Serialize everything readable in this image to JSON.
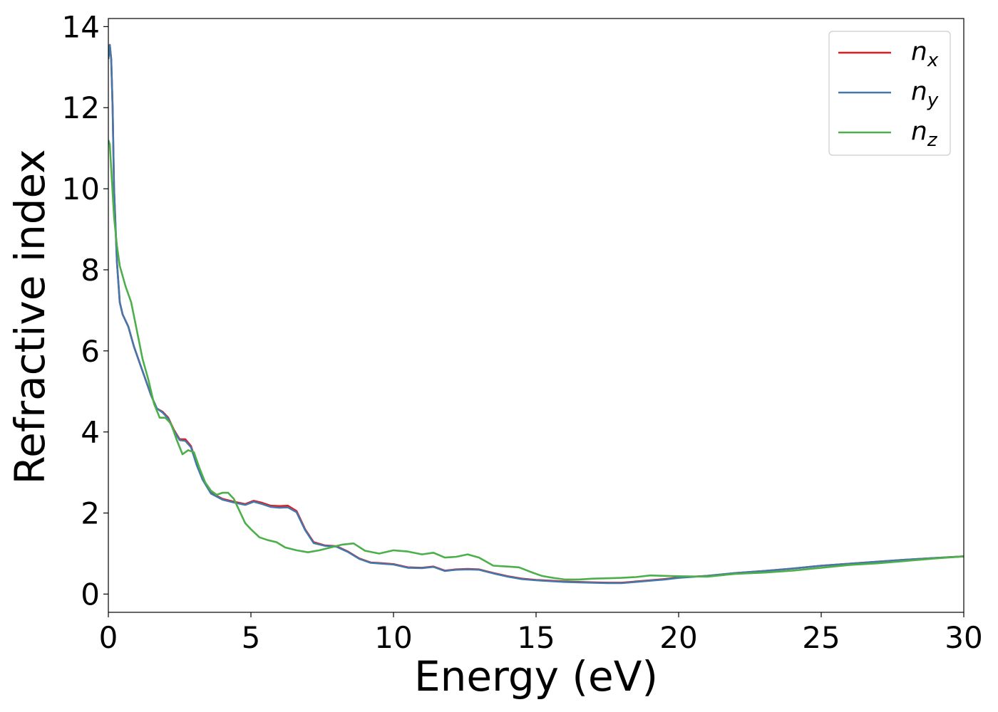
{
  "chart_data": {
    "type": "line",
    "title": "",
    "xlabel": "Energy (eV)",
    "ylabel": "Refractive index",
    "xlim": [
      0,
      30
    ],
    "ylim": [
      -0.45,
      14.2
    ],
    "xticks": [
      0,
      5,
      10,
      15,
      20,
      25,
      30
    ],
    "yticks": [
      0,
      2,
      4,
      6,
      8,
      10,
      12,
      14
    ],
    "grid": false,
    "legend_position": "top-right",
    "series": [
      {
        "name": "n",
        "subscript": "x",
        "color": "#e41a1c",
        "x": [
          0,
          0.05,
          0.1,
          0.15,
          0.2,
          0.3,
          0.4,
          0.5,
          0.7,
          0.9,
          1.1,
          1.3,
          1.5,
          1.7,
          1.9,
          2.1,
          2.3,
          2.5,
          2.7,
          2.9,
          3.1,
          3.3,
          3.6,
          4.0,
          4.4,
          4.8,
          5.1,
          5.4,
          5.7,
          6.0,
          6.3,
          6.6,
          6.9,
          7.2,
          7.6,
          8.0,
          8.4,
          8.8,
          9.2,
          9.6,
          10.0,
          10.5,
          11.0,
          11.4,
          11.8,
          12.2,
          12.6,
          13.0,
          13.5,
          14.0,
          14.5,
          15.0,
          15.5,
          16.0,
          16.5,
          17.0,
          17.5,
          18.0,
          18.5,
          19.0,
          19.5,
          20.0,
          21.0,
          22.0,
          23.0,
          24.0,
          25.0,
          26.0,
          27.0,
          28.0,
          29.0,
          30.0
        ],
        "y": [
          13.2,
          13.55,
          13.2,
          12.0,
          10.0,
          8.2,
          7.2,
          6.9,
          6.6,
          6.1,
          5.7,
          5.3,
          4.9,
          4.58,
          4.5,
          4.35,
          4.05,
          3.82,
          3.82,
          3.65,
          3.2,
          2.85,
          2.5,
          2.35,
          2.28,
          2.22,
          2.3,
          2.25,
          2.18,
          2.17,
          2.18,
          2.05,
          1.6,
          1.28,
          1.2,
          1.18,
          1.05,
          0.88,
          0.78,
          0.76,
          0.74,
          0.66,
          0.65,
          0.68,
          0.58,
          0.61,
          0.62,
          0.61,
          0.52,
          0.44,
          0.38,
          0.35,
          0.33,
          0.31,
          0.3,
          0.29,
          0.28,
          0.28,
          0.31,
          0.34,
          0.37,
          0.41,
          0.45,
          0.52,
          0.57,
          0.63,
          0.7,
          0.75,
          0.8,
          0.85,
          0.89,
          0.93
        ]
      },
      {
        "name": "n",
        "subscript": "y",
        "color": "#4477aa",
        "x": [
          0,
          0.05,
          0.1,
          0.15,
          0.2,
          0.3,
          0.4,
          0.5,
          0.7,
          0.9,
          1.1,
          1.3,
          1.5,
          1.7,
          1.9,
          2.1,
          2.3,
          2.5,
          2.7,
          2.9,
          3.1,
          3.3,
          3.6,
          4.0,
          4.4,
          4.8,
          5.1,
          5.4,
          5.7,
          6.0,
          6.3,
          6.6,
          6.9,
          7.2,
          7.6,
          8.0,
          8.4,
          8.8,
          9.2,
          9.6,
          10.0,
          10.5,
          11.0,
          11.4,
          11.8,
          12.2,
          12.6,
          13.0,
          13.5,
          14.0,
          14.5,
          15.0,
          15.5,
          16.0,
          16.5,
          17.0,
          17.5,
          18.0,
          18.5,
          19.0,
          19.5,
          20.0,
          21.0,
          22.0,
          23.0,
          24.0,
          25.0,
          26.0,
          27.0,
          28.0,
          29.0,
          30.0
        ],
        "y": [
          13.2,
          13.55,
          13.2,
          12.0,
          10.0,
          8.2,
          7.2,
          6.9,
          6.6,
          6.1,
          5.7,
          5.3,
          4.9,
          4.58,
          4.48,
          4.33,
          4.03,
          3.8,
          3.78,
          3.62,
          3.18,
          2.83,
          2.48,
          2.33,
          2.26,
          2.2,
          2.28,
          2.22,
          2.15,
          2.13,
          2.14,
          2.02,
          1.58,
          1.26,
          1.19,
          1.17,
          1.04,
          0.87,
          0.77,
          0.75,
          0.73,
          0.65,
          0.64,
          0.67,
          0.57,
          0.6,
          0.61,
          0.6,
          0.51,
          0.43,
          0.37,
          0.34,
          0.32,
          0.3,
          0.29,
          0.28,
          0.27,
          0.27,
          0.3,
          0.33,
          0.36,
          0.4,
          0.45,
          0.52,
          0.57,
          0.63,
          0.7,
          0.75,
          0.8,
          0.85,
          0.89,
          0.93
        ]
      },
      {
        "name": "n",
        "subscript": "z",
        "color": "#4daf4a",
        "x": [
          0,
          0.05,
          0.1,
          0.2,
          0.3,
          0.4,
          0.6,
          0.8,
          1.0,
          1.2,
          1.4,
          1.6,
          1.8,
          2.0,
          2.2,
          2.4,
          2.6,
          2.8,
          3.0,
          3.2,
          3.4,
          3.6,
          3.8,
          4.0,
          4.2,
          4.4,
          4.6,
          4.8,
          5.0,
          5.3,
          5.6,
          5.9,
          6.2,
          6.6,
          7.0,
          7.4,
          7.8,
          8.2,
          8.6,
          9.0,
          9.5,
          10.0,
          10.5,
          11.0,
          11.4,
          11.8,
          12.2,
          12.6,
          13.0,
          13.5,
          14.0,
          14.4,
          14.8,
          15.2,
          15.6,
          16.0,
          16.5,
          17.0,
          17.5,
          18.0,
          18.5,
          19.0,
          19.5,
          20.0,
          21.0,
          22.0,
          23.0,
          24.0,
          25.0,
          26.0,
          27.0,
          28.0,
          29.0,
          30.0
        ],
        "y": [
          11.2,
          11.1,
          10.5,
          9.3,
          8.6,
          8.1,
          7.6,
          7.2,
          6.5,
          5.8,
          5.3,
          4.7,
          4.35,
          4.35,
          4.2,
          3.8,
          3.45,
          3.55,
          3.5,
          3.1,
          2.75,
          2.55,
          2.45,
          2.5,
          2.5,
          2.35,
          2.05,
          1.75,
          1.6,
          1.4,
          1.33,
          1.28,
          1.15,
          1.08,
          1.03,
          1.08,
          1.15,
          1.22,
          1.25,
          1.07,
          1.0,
          1.08,
          1.05,
          0.98,
          1.02,
          0.9,
          0.92,
          0.98,
          0.9,
          0.7,
          0.68,
          0.66,
          0.55,
          0.45,
          0.4,
          0.36,
          0.36,
          0.38,
          0.39,
          0.4,
          0.42,
          0.46,
          0.45,
          0.44,
          0.43,
          0.5,
          0.53,
          0.58,
          0.65,
          0.72,
          0.76,
          0.82,
          0.88,
          0.93
        ]
      }
    ]
  }
}
